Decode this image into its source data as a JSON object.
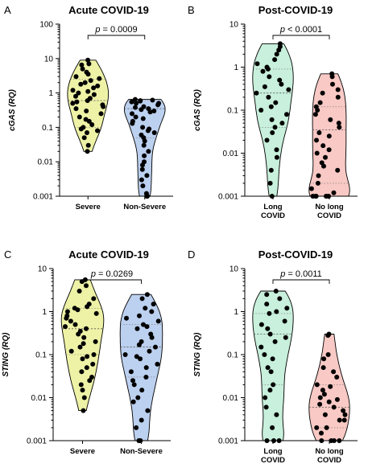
{
  "chart_data": [
    {
      "panel": "A",
      "type": "violin",
      "title": "Acute COVID-19",
      "ylabel": "cGAS (RQ)",
      "yscale": "log",
      "ylim": [
        0.001,
        100
      ],
      "yticks": [
        "0.001",
        "0.01",
        "0.1",
        "1",
        "10",
        "100"
      ],
      "pvalue": "p = 0.0009",
      "groups": [
        {
          "name": "Severe",
          "color": "#eef2a6",
          "median": 0.6,
          "q1": 0.1,
          "q3": 2.5,
          "values": [
            9,
            7,
            6.5,
            5,
            4,
            3.5,
            3,
            2.6,
            2.3,
            2,
            1.8,
            1.6,
            1.4,
            1.2,
            1.1,
            1,
            0.9,
            0.8,
            0.7,
            0.6,
            0.55,
            0.5,
            0.45,
            0.4,
            0.35,
            0.3,
            0.25,
            0.2,
            0.17,
            0.15,
            0.12,
            0.1,
            0.09,
            0.08,
            0.07,
            0.05,
            0.03,
            0.02
          ]
        },
        {
          "name": "Non-Severe",
          "color": "#bcd0ef",
          "median": 0.35,
          "q1": 0.05,
          "q3": 0.6,
          "values": [
            0.65,
            0.62,
            0.6,
            0.58,
            0.55,
            0.5,
            0.5,
            0.45,
            0.4,
            0.38,
            0.35,
            0.33,
            0.3,
            0.28,
            0.25,
            0.2,
            0.18,
            0.15,
            0.13,
            0.1,
            0.09,
            0.08,
            0.07,
            0.06,
            0.05,
            0.04,
            0.03,
            0.02,
            0.015,
            0.01,
            0.008,
            0.006,
            0.004,
            0.003,
            0.002,
            0.0012,
            0.001,
            0.001
          ]
        }
      ]
    },
    {
      "panel": "B",
      "type": "violin",
      "title": "Post-COVID-19",
      "ylabel": "cGAS (RQ)",
      "yscale": "log",
      "ylim": [
        0.001,
        10
      ],
      "yticks": [
        "0.001",
        "0.01",
        "0.1",
        "1",
        "10"
      ],
      "pvalue": "p < 0.0001",
      "groups": [
        {
          "name": "Long\nCOVID",
          "color": "#c8f0dc",
          "median": 0.25,
          "q1": 0.04,
          "q3": 0.9,
          "values": [
            3.5,
            3,
            2.5,
            2,
            1.5,
            1.2,
            1,
            0.9,
            0.8,
            0.6,
            0.5,
            0.4,
            0.35,
            0.3,
            0.25,
            0.2,
            0.15,
            0.12,
            0.1,
            0.08,
            0.06,
            0.05,
            0.04,
            0.03,
            0.02,
            0.012,
            0.008,
            0.004,
            0.002,
            0.001
          ]
        },
        {
          "name": "No long\nCOVID",
          "color": "#f8c9c5",
          "median": 0.035,
          "q1": 0.002,
          "q3": 0.12,
          "values": [
            0.7,
            0.6,
            0.4,
            0.3,
            0.25,
            0.2,
            0.15,
            0.12,
            0.1,
            0.08,
            0.06,
            0.05,
            0.04,
            0.03,
            0.025,
            0.02,
            0.015,
            0.012,
            0.01,
            0.008,
            0.006,
            0.005,
            0.004,
            0.003,
            0.002,
            0.0015,
            0.0012,
            0.001,
            0.001,
            0.001,
            0.001,
            0.001,
            0.001
          ]
        }
      ]
    },
    {
      "panel": "C",
      "type": "violin",
      "title": "Acute COVID-19",
      "ylabel": "STING (RQ)",
      "yscale": "log",
      "ylim": [
        0.001,
        10
      ],
      "yticks": [
        "0.001",
        "0.01",
        "0.1",
        "1",
        "10"
      ],
      "pvalue": "p = 0.0269",
      "groups": [
        {
          "name": "Severe",
          "color": "#eef2a6",
          "median": 0.4,
          "q1": 0.1,
          "q3": 1.2,
          "values": [
            5.5,
            5,
            4,
            3,
            2,
            1.5,
            1.3,
            1.2,
            1.1,
            1,
            0.9,
            0.8,
            0.7,
            0.6,
            0.5,
            0.45,
            0.4,
            0.35,
            0.3,
            0.25,
            0.2,
            0.18,
            0.15,
            0.12,
            0.1,
            0.09,
            0.08,
            0.06,
            0.05,
            0.04,
            0.03,
            0.025,
            0.02,
            0.015,
            0.01,
            0.005
          ]
        },
        {
          "name": "Non-Severe",
          "color": "#bcd0ef",
          "median": 0.15,
          "q1": 0.03,
          "q3": 0.5,
          "values": [
            2.5,
            2,
            1.5,
            1.2,
            1,
            0.8,
            0.7,
            0.6,
            0.5,
            0.45,
            0.4,
            0.3,
            0.25,
            0.2,
            0.17,
            0.15,
            0.12,
            0.1,
            0.09,
            0.08,
            0.06,
            0.05,
            0.04,
            0.03,
            0.025,
            0.02,
            0.015,
            0.01,
            0.008,
            0.005,
            0.003,
            0.002,
            0.001,
            0.001
          ]
        }
      ]
    },
    {
      "panel": "D",
      "type": "violin",
      "title": "Post-COVID-19",
      "ylabel": "STING (RQ)",
      "yscale": "log",
      "ylim": [
        0.001,
        10
      ],
      "yticks": [
        "0.001",
        "0.01",
        "0.1",
        "1",
        "10"
      ],
      "pvalue": "p = 0.0011",
      "groups": [
        {
          "name": "Long\nCOVID",
          "color": "#c8f0dc",
          "median": 0.3,
          "q1": 0.02,
          "q3": 0.9,
          "values": [
            3,
            2.5,
            2,
            1.5,
            1.2,
            1,
            0.9,
            0.6,
            0.5,
            0.4,
            0.3,
            0.25,
            0.2,
            0.15,
            0.1,
            0.08,
            0.05,
            0.04,
            0.02,
            0.015,
            0.01,
            0.006,
            0.004,
            0.002,
            0.001,
            0.001,
            0.001
          ]
        },
        {
          "name": "No long\nCOVID",
          "color": "#f8c9c5",
          "median": 0.006,
          "q1": 0.002,
          "q3": 0.02,
          "values": [
            0.3,
            0.28,
            0.1,
            0.08,
            0.05,
            0.04,
            0.03,
            0.02,
            0.018,
            0.015,
            0.012,
            0.01,
            0.009,
            0.008,
            0.007,
            0.006,
            0.005,
            0.004,
            0.004,
            0.003,
            0.003,
            0.002,
            0.002,
            0.0015,
            0.001,
            0.001,
            0.001,
            0.001
          ]
        }
      ]
    }
  ]
}
